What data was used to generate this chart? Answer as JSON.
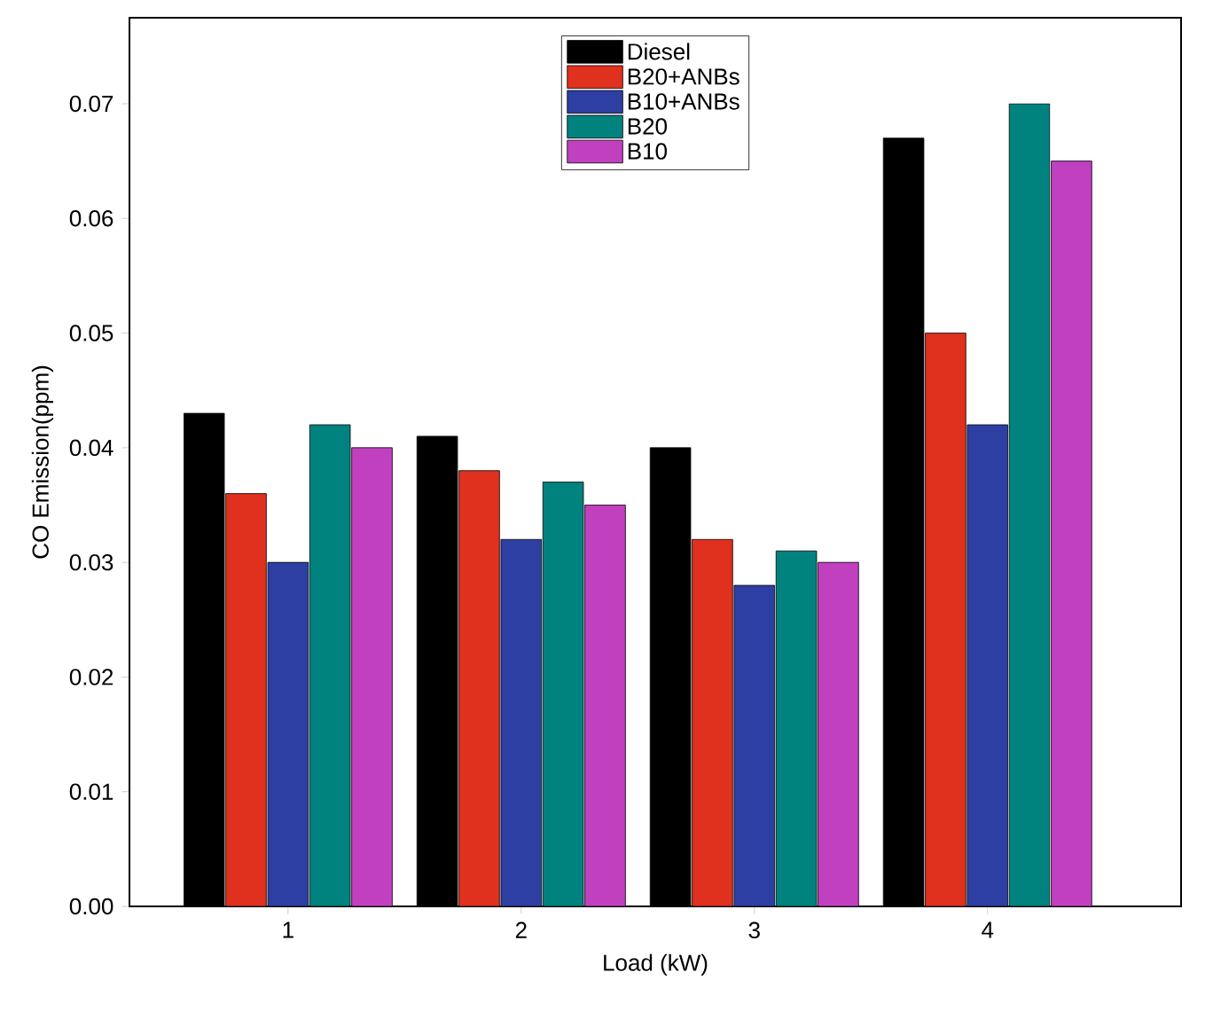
{
  "chart_data": {
    "type": "bar",
    "xlabel": "Load (kW)",
    "ylabel": "CO Emission(ppm)",
    "categories": [
      "1",
      "2",
      "3",
      "4"
    ],
    "series": [
      {
        "name": "Diesel",
        "color": "#000000",
        "values": [
          0.043,
          0.041,
          0.04,
          0.067
        ]
      },
      {
        "name": "B20+ANBs",
        "color": "#e0301e",
        "values": [
          0.036,
          0.038,
          0.032,
          0.05
        ]
      },
      {
        "name": "B10+ANBs",
        "color": "#2e3fa3",
        "values": [
          0.03,
          0.032,
          0.028,
          0.042
        ]
      },
      {
        "name": "B20",
        "color": "#00827f",
        "values": [
          0.042,
          0.037,
          0.031,
          0.07
        ]
      },
      {
        "name": "B10",
        "color": "#c040c0",
        "values": [
          0.04,
          0.035,
          0.03,
          0.065
        ]
      }
    ],
    "ylim": [
      0,
      0.0775
    ],
    "yticks": [
      {
        "value": 0,
        "label": "0.00"
      },
      {
        "value": 0.01,
        "label": "0.01"
      },
      {
        "value": 0.02,
        "label": "0.02"
      },
      {
        "value": 0.03,
        "label": "0.03"
      },
      {
        "value": 0.04,
        "label": "0.04"
      },
      {
        "value": 0.05,
        "label": "0.05"
      },
      {
        "value": 0.06,
        "label": "0.06"
      },
      {
        "value": 0.07,
        "label": "0.07"
      }
    ],
    "grid": false,
    "legend": "top"
  }
}
